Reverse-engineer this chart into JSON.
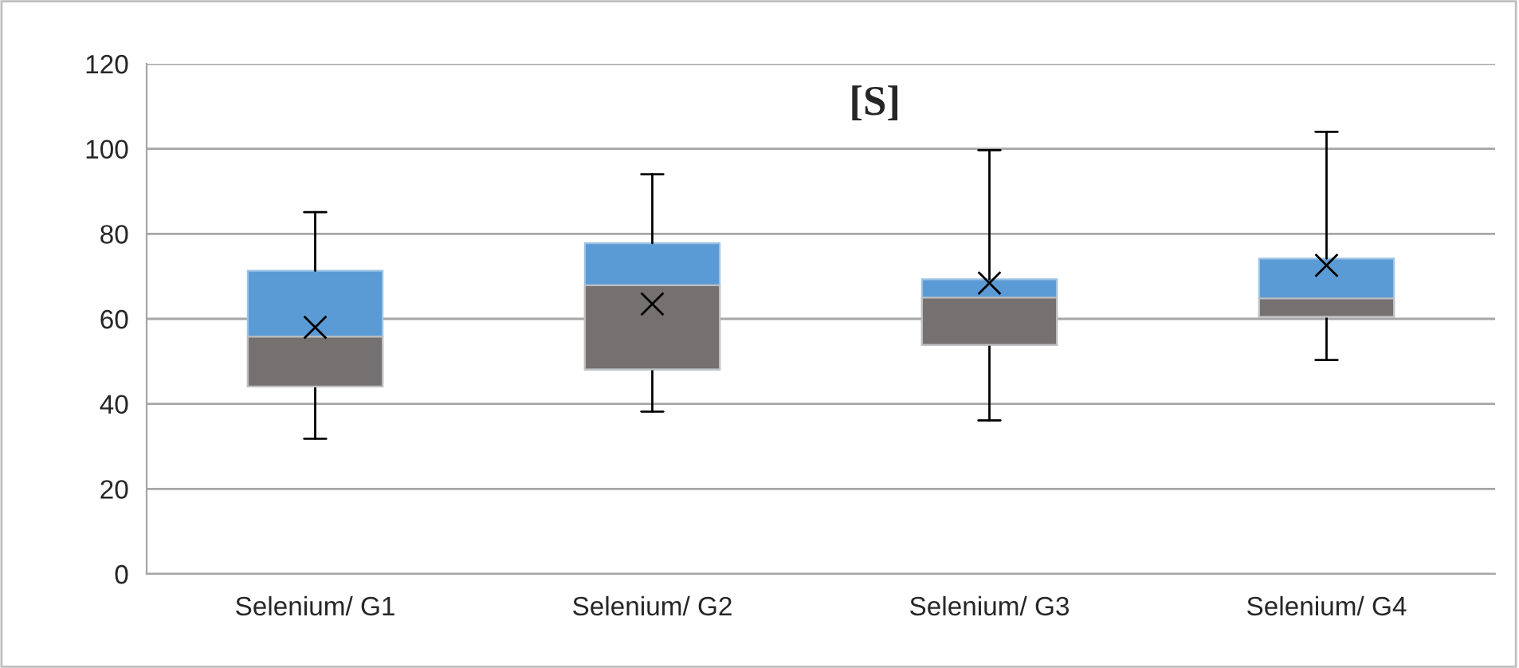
{
  "chart_data": {
    "type": "box",
    "title": "[S]",
    "categories": [
      "Selenium/ G1",
      "Selenium/ G2",
      "Selenium/ G3",
      "Selenium/ G4"
    ],
    "series": [
      {
        "color": "#5b9bd5",
        "colors": [
          "#767171",
          "#767171",
          "#767171",
          "#767171"
        ],
        "boxes": [
          {
            "low": 31.8,
            "q1": 44.1,
            "median": 55.8,
            "q3": 71.3,
            "high": 85.1,
            "mean": 58.0
          },
          {
            "low": 38.2,
            "q1": 48.1,
            "median": 67.9,
            "q3": 77.8,
            "high": 94.0,
            "mean": 63.5
          },
          {
            "low": 36.1,
            "q1": 53.9,
            "median": 65.0,
            "q3": 69.3,
            "high": 99.7,
            "mean": 68.4
          },
          {
            "low": 50.3,
            "q1": 60.5,
            "median": 64.8,
            "q3": 74.2,
            "high": 104.0,
            "mean": 72.6
          }
        ]
      }
    ],
    "ylim": [
      0,
      120
    ],
    "yticks": [
      0,
      20,
      40,
      60,
      80,
      100,
      120
    ],
    "grid": "y",
    "marker": "cross"
  }
}
